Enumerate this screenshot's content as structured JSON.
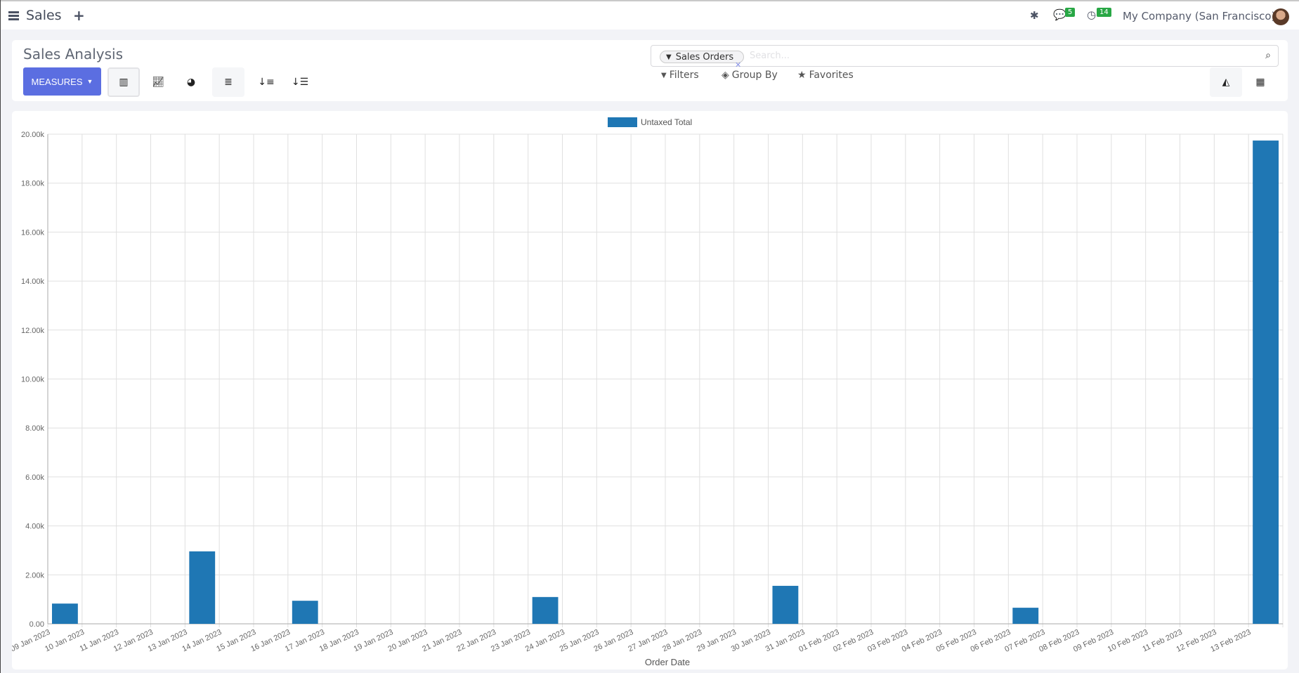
{
  "navbar": {
    "app_name": "Sales",
    "messages_count": "5",
    "activities_count": "14",
    "company": "My Company (San Francisco)"
  },
  "control_panel": {
    "title": "Sales Analysis",
    "measures_label": "MEASURES",
    "search": {
      "facet": "Sales Orders",
      "placeholder": "Search..."
    },
    "filters_label": "Filters",
    "group_by_label": "Group By",
    "favorites_label": "Favorites"
  },
  "colors": {
    "accent": "#5b6ee1",
    "bar": "#1f77b4",
    "badge": "#28a745"
  },
  "chart_data": {
    "type": "bar",
    "legend": [
      "Untaxed Total"
    ],
    "legend_position": "top",
    "xlabel": "Order Date",
    "ylabel": "",
    "ylim": [
      0,
      20000
    ],
    "yticks": [
      "0.00",
      "2.00k",
      "4.00k",
      "6.00k",
      "8.00k",
      "10.00k",
      "12.00k",
      "14.00k",
      "16.00k",
      "18.00k",
      "20.00k"
    ],
    "grid": true,
    "categories": [
      "09 Jan 2023",
      "10 Jan 2023",
      "11 Jan 2023",
      "12 Jan 2023",
      "13 Jan 2023",
      "14 Jan 2023",
      "15 Jan 2023",
      "16 Jan 2023",
      "17 Jan 2023",
      "18 Jan 2023",
      "19 Jan 2023",
      "20 Jan 2023",
      "21 Jan 2023",
      "22 Jan 2023",
      "23 Jan 2023",
      "24 Jan 2023",
      "25 Jan 2023",
      "26 Jan 2023",
      "27 Jan 2023",
      "28 Jan 2023",
      "29 Jan 2023",
      "30 Jan 2023",
      "31 Jan 2023",
      "01 Feb 2023",
      "02 Feb 2023",
      "03 Feb 2023",
      "04 Feb 2023",
      "05 Feb 2023",
      "06 Feb 2023",
      "07 Feb 2023",
      "08 Feb 2023",
      "09 Feb 2023",
      "10 Feb 2023",
      "11 Feb 2023",
      "12 Feb 2023",
      "13 Feb 2023"
    ],
    "series": [
      {
        "name": "Untaxed Total",
        "values": [
          827,
          0,
          0,
          0,
          2960,
          0,
          0,
          942,
          0,
          0,
          0,
          0,
          0,
          0,
          1095,
          0,
          0,
          0,
          0,
          0,
          0,
          1552,
          0,
          0,
          0,
          0,
          0,
          0,
          657,
          0,
          0,
          0,
          0,
          0,
          0,
          19740
        ]
      }
    ]
  }
}
